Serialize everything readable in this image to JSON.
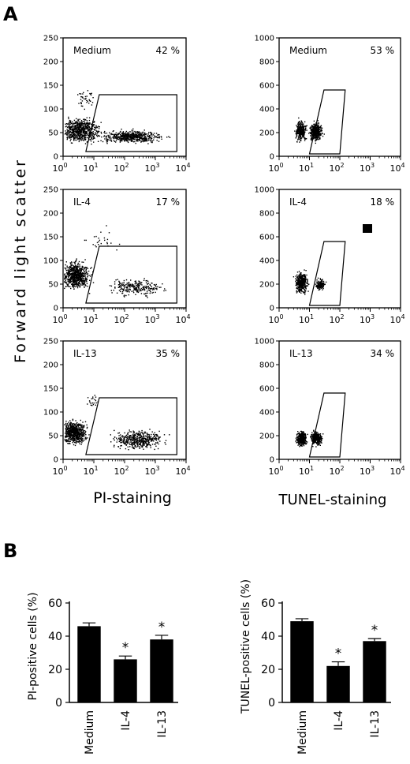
{
  "figure": {
    "panel_a_label": "A",
    "panel_b_label": "B",
    "flow_ylabel": "Forward light scatter",
    "pi_xlabel": "PI-staining",
    "tunel_xlabel": "TUNEL-staining"
  },
  "chart_data": [
    {
      "type": "scatter",
      "name": "PI-staining, Medium",
      "condition": "Medium",
      "percent_label": "42 %",
      "xscale": "log",
      "xlim": [
        1,
        10000
      ],
      "ylim": [
        0,
        250
      ],
      "xticks": [
        "10^0",
        "10^1",
        "10^2",
        "10^3",
        "10^4"
      ],
      "yticks": [
        0,
        50,
        100,
        150,
        200,
        250
      ],
      "gate": [
        [
          5.5,
          10
        ],
        [
          15,
          130
        ],
        [
          5000,
          130
        ],
        [
          5000,
          10
        ]
      ],
      "clusters": [
        {
          "x_log_range": [
            -0.3,
            1.4
          ],
          "y_range": [
            20,
            90
          ],
          "n": 650
        },
        {
          "x_log_range": [
            0.8,
            3.6
          ],
          "y_range": [
            25,
            60
          ],
          "n": 550
        },
        {
          "x_log_range": [
            0.2,
            1.2
          ],
          "y_range": [
            90,
            155
          ],
          "n": 40
        }
      ]
    },
    {
      "type": "scatter",
      "name": "PI-staining, IL-4",
      "condition": "IL-4",
      "percent_label": "17 %",
      "xscale": "log",
      "xlim": [
        1,
        10000
      ],
      "ylim": [
        0,
        250
      ],
      "xticks": [
        "10^0",
        "10^1",
        "10^2",
        "10^3",
        "10^4"
      ],
      "yticks": [
        0,
        50,
        100,
        150,
        200,
        250
      ],
      "gate": [
        [
          5.5,
          10
        ],
        [
          15,
          130
        ],
        [
          5000,
          130
        ],
        [
          5000,
          10
        ]
      ],
      "clusters": [
        {
          "x_log_range": [
            -0.2,
            1.0
          ],
          "y_range": [
            30,
            110
          ],
          "n": 700
        },
        {
          "x_log_range": [
            1.2,
            3.6
          ],
          "y_range": [
            20,
            70
          ],
          "n": 250
        },
        {
          "x_log_range": [
            0.5,
            2.0
          ],
          "y_range": [
            100,
            190
          ],
          "n": 25
        }
      ]
    },
    {
      "type": "scatter",
      "name": "PI-staining, IL-13",
      "condition": "IL-13",
      "percent_label": "35 %",
      "xscale": "log",
      "xlim": [
        1,
        10000
      ],
      "ylim": [
        0,
        250
      ],
      "xticks": [
        "10^0",
        "10^1",
        "10^2",
        "10^3",
        "10^4"
      ],
      "yticks": [
        0,
        50,
        100,
        150,
        200,
        250
      ],
      "gate": [
        [
          5.5,
          10
        ],
        [
          15,
          130
        ],
        [
          5000,
          130
        ],
        [
          5000,
          10
        ]
      ],
      "clusters": [
        {
          "x_log_range": [
            -0.2,
            0.9
          ],
          "y_range": [
            25,
            90
          ],
          "n": 650
        },
        {
          "x_log_range": [
            1.3,
            3.6
          ],
          "y_range": [
            15,
            70
          ],
          "n": 450
        },
        {
          "x_log_range": [
            0.7,
            1.3
          ],
          "y_range": [
            90,
            155
          ],
          "n": 20
        }
      ]
    },
    {
      "type": "scatter",
      "name": "TUNEL-staining, Medium",
      "condition": "Medium",
      "percent_label": "53 %",
      "xscale": "log",
      "xlim": [
        1,
        10000
      ],
      "ylim": [
        0,
        1000
      ],
      "xticks": [
        "10^0",
        "10^1",
        "10^2",
        "10^3",
        "10^4"
      ],
      "yticks": [
        0,
        200,
        400,
        600,
        800,
        1000
      ],
      "gate": [
        [
          10,
          20
        ],
        [
          100,
          20
        ],
        [
          150,
          560
        ],
        [
          30,
          560
        ]
      ],
      "clusters": [
        {
          "x_log_range": [
            0.45,
            0.95
          ],
          "y_range": [
            100,
            340
          ],
          "n": 280
        },
        {
          "x_log_range": [
            0.9,
            1.5
          ],
          "y_range": [
            100,
            320
          ],
          "n": 380
        }
      ]
    },
    {
      "type": "scatter",
      "name": "TUNEL-staining, IL-4",
      "condition": "IL-4",
      "percent_label": "18 %",
      "xscale": "log",
      "xlim": [
        1,
        10000
      ],
      "ylim": [
        0,
        1000
      ],
      "xticks": [
        "10^0",
        "10^1",
        "10^2",
        "10^3",
        "10^4"
      ],
      "yticks": [
        0,
        200,
        400,
        600,
        800,
        1000
      ],
      "gate": [
        [
          10,
          20
        ],
        [
          100,
          20
        ],
        [
          150,
          560
        ],
        [
          30,
          560
        ]
      ],
      "clusters": [
        {
          "x_log_range": [
            0.45,
            1.0
          ],
          "y_range": [
            100,
            330
          ],
          "n": 420
        },
        {
          "x_log_range": [
            1.1,
            1.6
          ],
          "y_range": [
            130,
            270
          ],
          "n": 130
        }
      ]
    },
    {
      "type": "scatter",
      "name": "TUNEL-staining, IL-13",
      "condition": "IL-13",
      "percent_label": "34 %",
      "xscale": "log",
      "xlim": [
        1,
        10000
      ],
      "ylim": [
        0,
        1000
      ],
      "xticks": [
        "10^0",
        "10^1",
        "10^2",
        "10^3",
        "10^4"
      ],
      "yticks": [
        0,
        200,
        400,
        600,
        800,
        1000
      ],
      "gate": [
        [
          10,
          20
        ],
        [
          100,
          20
        ],
        [
          150,
          560
        ],
        [
          30,
          560
        ]
      ],
      "clusters": [
        {
          "x_log_range": [
            0.5,
            0.95
          ],
          "y_range": [
            100,
            260
          ],
          "n": 420
        },
        {
          "x_log_range": [
            0.95,
            1.5
          ],
          "y_range": [
            100,
            260
          ],
          "n": 260
        }
      ]
    },
    {
      "type": "bar",
      "ylabel": "PI-positive cells (%)",
      "categories": [
        "Medium",
        "IL-4",
        "IL-13"
      ],
      "values": [
        46,
        26,
        38
      ],
      "errors": [
        2,
        2,
        2.5
      ],
      "significance": [
        "",
        "*",
        "*"
      ],
      "ylim": [
        0,
        60
      ],
      "yticks": [
        0,
        20,
        40,
        60
      ]
    },
    {
      "type": "bar",
      "ylabel": "TUNEL-positive cells (%)",
      "categories": [
        "Medium",
        "IL-4",
        "IL-13"
      ],
      "values": [
        49,
        22,
        37
      ],
      "errors": [
        1.5,
        2.5,
        1.5
      ],
      "significance": [
        "",
        "*",
        "*"
      ],
      "ylim": [
        0,
        60
      ],
      "yticks": [
        0,
        20,
        40,
        60
      ]
    }
  ]
}
